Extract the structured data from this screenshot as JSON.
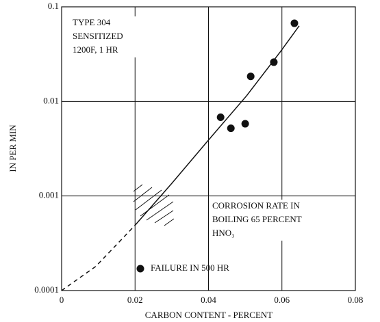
{
  "chart_data": {
    "type": "scatter",
    "y_label": "IN PER MIN",
    "x_label": "CARBON CONTENT - PERCENT",
    "xlim": [
      0,
      0.08
    ],
    "xticks": [
      0,
      0.02,
      0.04,
      0.06,
      0.08
    ],
    "ylim": [
      0.0001,
      0.1
    ],
    "yticks": [
      0.0001,
      0.001,
      0.01,
      0.1
    ],
    "log_y": true,
    "grid": true,
    "series": [
      {
        "name": "FAILURE IN 500 HR",
        "type": "scatter",
        "color": "#111111",
        "x": [
          0.0433,
          0.0461,
          0.05,
          0.0515,
          0.0578,
          0.0634
        ],
        "values": [
          0.0068,
          0.0052,
          0.0058,
          0.0184,
          0.026,
          0.067
        ]
      },
      {
        "type": "line",
        "style": "dashed",
        "color": "#111111",
        "x": [
          0,
          0.0093,
          0.02
        ],
        "values": [
          0.0001,
          0.00018,
          0.00049
        ]
      },
      {
        "type": "line",
        "style": "solid",
        "color": "#111111",
        "x": [
          0.02,
          0.0298,
          0.04,
          0.0504,
          0.0597,
          0.0647
        ],
        "values": [
          0.00049,
          0.00133,
          0.0039,
          0.0115,
          0.034,
          0.063
        ]
      }
    ],
    "annotations": [
      {
        "lines": [
          "TYPE 304",
          "SENSITIZED",
          "1200F, 1 HR"
        ]
      },
      {
        "lines": [
          "CORROSION RATE IN",
          "BOILING 65 PERCENT",
          "HNO₃"
        ]
      }
    ]
  }
}
